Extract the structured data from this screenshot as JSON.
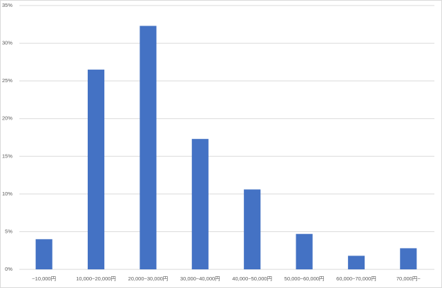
{
  "chart_data": {
    "type": "bar",
    "categories": [
      "~10,000円",
      "10,000~20,000円",
      "20,000~30,000円",
      "30,000~40,000円",
      "40,000~50,000円",
      "50,000~60,000円",
      "60,000~70,000円",
      "70,000円~"
    ],
    "values": [
      4.0,
      26.5,
      32.3,
      17.3,
      10.6,
      4.7,
      1.8,
      2.8
    ],
    "color": "#4472c4",
    "ylim": [
      0,
      35
    ],
    "yticks": [
      {
        "value": 0,
        "label": "0%"
      },
      {
        "value": 5,
        "label": "5%"
      },
      {
        "value": 10,
        "label": "10%"
      },
      {
        "value": 15,
        "label": "15%"
      },
      {
        "value": 20,
        "label": "20%"
      },
      {
        "value": 25,
        "label": "25%"
      },
      {
        "value": 30,
        "label": "30%"
      },
      {
        "value": 35,
        "label": "35%"
      }
    ],
    "grid": true
  }
}
